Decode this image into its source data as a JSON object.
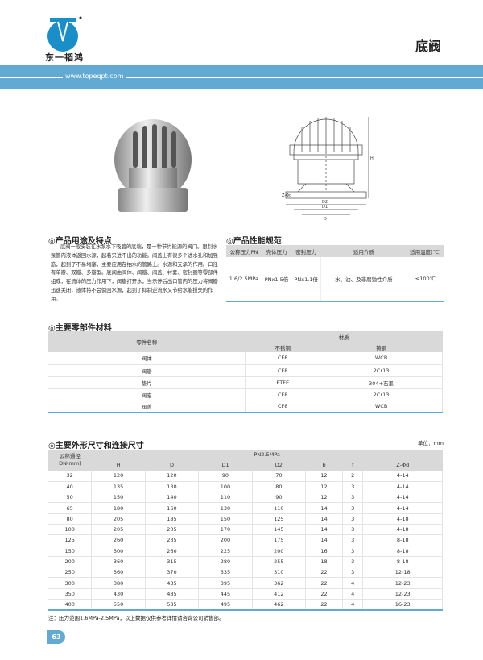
{
  "header": {
    "brand": "东一韬鸿",
    "title": "底阀",
    "url": "www.topeqpt.com",
    "accent": "#62a9d3"
  },
  "usage": {
    "title": "◎产品用途及特点",
    "text": "底阀一般安装在水泵水下吸管的底端，是一种节约能源的阀门。限制水泵管内液体返回水源，起着只进不出的功能。阀盖上有很多个进水孔和加强筋，起到了不易堵塞，主要应用在抽水的管路上。水源和支承的作用。口径有单瓣、双瓣、多瓣型。底阀由阀体、阀瓣、阀盖、衬套、密封圈等零部件组成，在流体的压力作用下，阀瓣打开水，当示停后出口管内的压力将阀瓣迅速关闭，液体将不会倒回水源，起到了抑制逆流水又节约水能损失的作用。"
  },
  "spec": {
    "title": "◎产品性能规范",
    "headers": [
      "公称压力PN",
      "壳体压力",
      "密封压力",
      "适用介质",
      "适用温度(℃)"
    ],
    "values": [
      "1.6/2.5MPa",
      "PNx1.5倍",
      "PNx1.1倍",
      "水、油、及非腐蚀性介质",
      "≤100℃"
    ]
  },
  "materials": {
    "title": "◎主要零部件材料",
    "col_name": "零件名称",
    "col_group": "材质",
    "col_ss": "不锈钢",
    "col_cast": "铸钢",
    "rows": [
      [
        "阀体",
        "CF8",
        "WCB"
      ],
      [
        "阀瓣",
        "CF8",
        "2Cr13"
      ],
      [
        "垫片",
        "PTFE",
        "304+石墨"
      ],
      [
        "阀座",
        "CF8",
        "2Cr13"
      ],
      [
        "阀盖",
        "CF8",
        "WCB"
      ]
    ]
  },
  "dimensions": {
    "title": "◎主要外形尺寸和连接尺寸",
    "unit": "单位：mm",
    "col_dn": "公称通径",
    "col_dn2": "DN(mm)",
    "group": "PN2.5MPa",
    "cols": [
      "H",
      "D",
      "D1",
      "D2",
      "b",
      "f",
      "Z-Φd"
    ],
    "rows": [
      [
        "32",
        "120",
        "120",
        "90",
        "70",
        "12",
        "2",
        "4-14"
      ],
      [
        "40",
        "135",
        "130",
        "100",
        "80",
        "12",
        "3",
        "4-14"
      ],
      [
        "50",
        "150",
        "140",
        "110",
        "90",
        "12",
        "3",
        "4-14"
      ],
      [
        "65",
        "180",
        "160",
        "130",
        "110",
        "14",
        "3",
        "4-14"
      ],
      [
        "80",
        "205",
        "185",
        "150",
        "125",
        "14",
        "3",
        "4-18"
      ],
      [
        "100",
        "205",
        "205",
        "170",
        "145",
        "14",
        "3",
        "4-18"
      ],
      [
        "125",
        "260",
        "235",
        "200",
        "175",
        "14",
        "3",
        "8-18"
      ],
      [
        "150",
        "300",
        "260",
        "225",
        "200",
        "16",
        "3",
        "8-18"
      ],
      [
        "200",
        "360",
        "315",
        "280",
        "255",
        "18",
        "3",
        "8-18"
      ],
      [
        "250",
        "360",
        "370",
        "335",
        "310",
        "22",
        "3",
        "12-18"
      ],
      [
        "300",
        "380",
        "435",
        "395",
        "362",
        "22",
        "4",
        "12-23"
      ],
      [
        "350",
        "430",
        "485",
        "445",
        "412",
        "22",
        "4",
        "12-23"
      ],
      [
        "400",
        "550",
        "535",
        "495",
        "462",
        "22",
        "4",
        "16-23"
      ]
    ],
    "note": "注：压力范围1.6MPa-2.5MPa，以上数据仅供参考详情请咨询公司销售部。"
  },
  "drawing": {
    "labels": [
      "Z-Φd",
      "D2",
      "D1",
      "D",
      "H"
    ]
  },
  "page_number": "63"
}
